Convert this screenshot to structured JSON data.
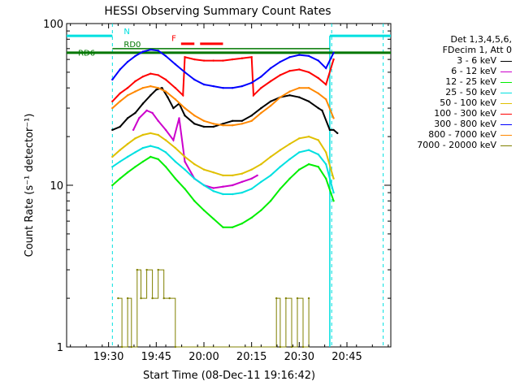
{
  "chart_data": {
    "type": "line",
    "title": "HESSI Observing Summary Count Rates",
    "xlabel": "Start Time (08-Dec-11 19:16:42)",
    "ylabel": "Count Rate (s⁻¹ detector⁻¹)",
    "yscale": "log",
    "xlim": [
      19.28,
      20.98
    ],
    "ylim": [
      1,
      100
    ],
    "x_tick_labels": [
      "19:30",
      "19:45",
      "20:00",
      "20:15",
      "20:30",
      "20:45"
    ],
    "x_tick_values": [
      19.5,
      19.75,
      20.0,
      20.25,
      20.5,
      20.75
    ],
    "y_tick_labels": [
      "1",
      "10",
      "100"
    ],
    "y_tick_values": [
      1,
      10,
      100
    ],
    "grid": false,
    "legend_position": "right, outside plot",
    "legend_header": [
      "Det 1,3,4,5,6,",
      "FDecim 1, Att 0"
    ],
    "annotations": {
      "n": "N",
      "f": "F",
      "rd0": "RD0",
      "rd6": "RD6"
    },
    "series": [
      {
        "name": "3 - 6 keV",
        "color": "#000000",
        "x": [
          19.52,
          19.56,
          19.6,
          19.64,
          19.68,
          19.72,
          19.75,
          19.78,
          19.81,
          19.84,
          19.87,
          19.9,
          19.95,
          20.0,
          20.05,
          20.1,
          20.15,
          20.2,
          20.25,
          20.3,
          20.35,
          20.4,
          20.45,
          20.5,
          20.55,
          20.6,
          20.62,
          20.66,
          20.68,
          20.7
        ],
        "y": [
          22,
          23,
          26,
          28,
          32,
          36,
          39,
          40,
          35,
          30,
          32,
          27,
          24,
          23,
          23,
          24,
          25,
          25,
          27,
          30,
          33,
          35,
          36,
          35,
          33,
          30,
          29,
          22,
          22,
          21
        ]
      },
      {
        "name": "6 - 12 keV",
        "color": "#cc00cc",
        "x": [
          19.63,
          19.66,
          19.7,
          19.73,
          19.76,
          19.8,
          19.84,
          19.87,
          19.9,
          19.95,
          20.0,
          20.05,
          20.1,
          20.15,
          20.2,
          20.25,
          20.28
        ],
        "y": [
          22,
          26,
          29,
          28,
          25,
          22,
          19,
          26,
          14,
          11,
          10,
          9.6,
          9.8,
          10,
          10.5,
          11,
          11.5
        ]
      },
      {
        "name": "12 - 25 keV",
        "color": "#00ee00",
        "x": [
          19.52,
          19.56,
          19.6,
          19.64,
          19.68,
          19.72,
          19.76,
          19.8,
          19.85,
          19.9,
          19.95,
          20.0,
          20.05,
          20.1,
          20.15,
          20.2,
          20.25,
          20.3,
          20.35,
          20.4,
          20.45,
          20.5,
          20.55,
          20.6,
          20.64,
          20.68
        ],
        "y": [
          10,
          11,
          12,
          13,
          14,
          15,
          14.5,
          13,
          11,
          9.5,
          8,
          7,
          6.2,
          5.5,
          5.5,
          5.8,
          6.3,
          7,
          8,
          9.5,
          11,
          12.5,
          13.5,
          13,
          11,
          8
        ]
      },
      {
        "name": "25 - 50 keV",
        "color": "#00e0e0",
        "x": [
          19.52,
          19.56,
          19.6,
          19.64,
          19.68,
          19.72,
          19.76,
          19.8,
          19.85,
          19.9,
          19.95,
          20.0,
          20.05,
          20.1,
          20.15,
          20.2,
          20.25,
          20.3,
          20.35,
          20.4,
          20.45,
          20.5,
          20.55,
          20.6,
          20.64,
          20.68
        ],
        "y": [
          13,
          14,
          15,
          16,
          17,
          17.5,
          17,
          16,
          14,
          12.5,
          11,
          10,
          9.2,
          8.8,
          8.8,
          9,
          9.5,
          10.5,
          11.5,
          13,
          14.5,
          16,
          16.5,
          15.5,
          13.5,
          9
        ]
      },
      {
        "name": "50 - 100 keV",
        "color": "#e0c000",
        "x": [
          19.52,
          19.56,
          19.6,
          19.64,
          19.68,
          19.72,
          19.76,
          19.8,
          19.85,
          19.9,
          19.95,
          20.0,
          20.05,
          20.1,
          20.15,
          20.2,
          20.25,
          20.3,
          20.35,
          20.4,
          20.45,
          20.5,
          20.55,
          20.6,
          20.64,
          20.68
        ],
        "y": [
          15,
          16.5,
          18,
          19.5,
          20.5,
          21,
          20.5,
          19,
          17,
          15,
          13.5,
          12.5,
          12,
          11.5,
          11.5,
          11.8,
          12.5,
          13.5,
          15,
          16.5,
          18,
          19.5,
          20,
          19,
          16,
          11
        ]
      },
      {
        "name": "100 - 300 keV",
        "color": "#ff0000",
        "x": [
          19.52,
          19.56,
          19.6,
          19.64,
          19.68,
          19.72,
          19.76,
          19.8,
          19.85,
          19.89,
          19.9,
          19.95,
          20.0,
          20.05,
          20.1,
          20.15,
          20.2,
          20.25,
          20.26,
          20.3,
          20.35,
          20.4,
          20.45,
          20.5,
          20.55,
          20.6,
          20.64,
          20.68
        ],
        "y": [
          33,
          37,
          40,
          44,
          47,
          49,
          48,
          45,
          40,
          36,
          62,
          60,
          59,
          59,
          59,
          60,
          61,
          62,
          36,
          40,
          44,
          48,
          51,
          52,
          50,
          46,
          42,
          60
        ]
      },
      {
        "name": "300 - 800 keV",
        "color": "#0000ff",
        "x": [
          19.52,
          19.56,
          19.6,
          19.64,
          19.68,
          19.72,
          19.76,
          19.8,
          19.85,
          19.9,
          19.95,
          20.0,
          20.05,
          20.1,
          20.15,
          20.2,
          20.25,
          20.3,
          20.35,
          20.4,
          20.45,
          20.5,
          20.55,
          20.6,
          20.64,
          20.68
        ],
        "y": [
          45,
          52,
          58,
          63,
          67,
          69,
          68,
          63,
          56,
          50,
          45,
          42,
          41,
          40,
          40,
          41,
          43,
          47,
          53,
          58,
          62,
          64,
          63,
          59,
          53,
          66
        ]
      },
      {
        "name": "800 - 7000 keV",
        "color": "#ff8800",
        "x": [
          19.52,
          19.56,
          19.6,
          19.64,
          19.68,
          19.72,
          19.76,
          19.8,
          19.85,
          19.9,
          19.95,
          20.0,
          20.05,
          20.1,
          20.15,
          20.2,
          20.25,
          20.3,
          20.35,
          20.4,
          20.45,
          20.5,
          20.55,
          20.6,
          20.64,
          20.68
        ],
        "y": [
          30,
          33,
          36,
          38,
          40,
          41,
          40,
          38,
          34,
          30,
          27,
          25,
          24,
          23.5,
          23.5,
          24,
          25,
          28,
          31,
          35,
          38,
          40,
          40,
          37,
          34,
          26
        ]
      },
      {
        "name": "7000 - 20000 keV",
        "color": "#808000",
        "x": [
          19.55,
          19.57,
          19.6,
          19.62,
          19.65,
          19.67,
          19.7,
          19.73,
          19.76,
          19.79,
          19.82,
          19.85,
          20.38,
          20.4,
          20.43,
          20.46,
          20.49,
          20.52,
          20.55
        ],
        "y": [
          2,
          1,
          2,
          1,
          3,
          2,
          3,
          2,
          3,
          2,
          2,
          1,
          2,
          1,
          2,
          1,
          2,
          1,
          2
        ]
      }
    ]
  }
}
